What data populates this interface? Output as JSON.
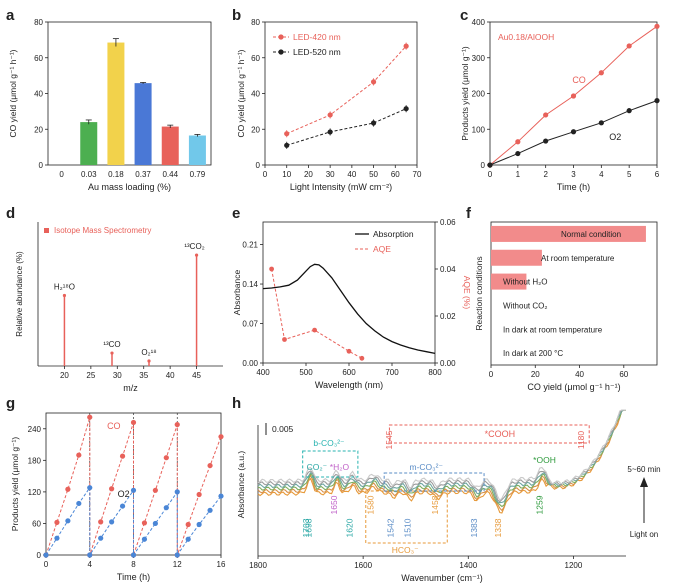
{
  "chart_data": [
    {
      "panel": "a",
      "type": "bar",
      "xlabel": "Au mass loading (%)",
      "ylabel": "CO yield (μmol g⁻¹ h⁻¹)",
      "categories": [
        "0",
        "0.03",
        "0.18",
        "0.37",
        "0.44",
        "0.79"
      ],
      "values": [
        0,
        24,
        68.5,
        45.8,
        21.5,
        16.5
      ],
      "errors": [
        0,
        1.2,
        2.2,
        0.4,
        0.8,
        0.6
      ],
      "colors": [
        "#888888",
        "#4caf50",
        "#f2d24b",
        "#4a78d6",
        "#e8615a",
        "#71c8ea"
      ],
      "ylim": [
        0,
        80
      ],
      "yticks": [
        0,
        20,
        40,
        60,
        80
      ]
    },
    {
      "panel": "b",
      "type": "line",
      "xlabel": "Light Intensity (mW cm⁻²)",
      "ylabel": "CO yield (μmol g⁻¹ h⁻¹)",
      "xlim": [
        0,
        70
      ],
      "xticks": [
        0,
        10,
        20,
        30,
        40,
        50,
        60,
        70
      ],
      "ylim": [
        0,
        80
      ],
      "yticks": [
        0,
        20,
        40,
        60,
        80
      ],
      "series": [
        {
          "name": "LED-420 nm",
          "color": "#e8615a",
          "x": [
            10,
            30,
            50,
            65
          ],
          "values": [
            17.5,
            28,
            46.5,
            66.5
          ]
        },
        {
          "name": "LED-520 nm",
          "color": "#222222",
          "x": [
            10,
            30,
            50,
            65
          ],
          "values": [
            11,
            18.5,
            23.5,
            31.5
          ]
        }
      ]
    },
    {
      "panel": "c",
      "type": "line",
      "xlabel": "Time (h)",
      "ylabel": "Products yield (μmol g⁻¹)",
      "annotation": "Au0.18/AlOOH",
      "xlim": [
        0,
        6
      ],
      "xticks": [
        0,
        1,
        2,
        3,
        4,
        5,
        6
      ],
      "ylim": [
        0,
        400
      ],
      "yticks": [
        0,
        100,
        200,
        300,
        400
      ],
      "series": [
        {
          "name": "CO",
          "color": "#e8615a",
          "x": [
            0,
            1,
            2,
            3,
            4,
            5,
            6
          ],
          "values": [
            0,
            65,
            140,
            193,
            258,
            333,
            388
          ]
        },
        {
          "name": "O2",
          "color": "#222222",
          "x": [
            0,
            1,
            2,
            3,
            4,
            5,
            6
          ],
          "values": [
            0,
            32,
            67,
            93,
            118,
            152,
            180
          ]
        }
      ]
    },
    {
      "panel": "d",
      "type": "bar",
      "xlabel": "m/z",
      "ylabel": "Relative abundance (%)",
      "legend": "Isotope Mass Spectrometry",
      "xlim": [
        15,
        50
      ],
      "xticks": [
        20,
        25,
        30,
        35,
        40,
        45
      ],
      "peaks": [
        {
          "mz": 20,
          "value": 0.49,
          "label": "H₂¹⁸O"
        },
        {
          "mz": 29,
          "value": 0.09,
          "label": "¹³CO"
        },
        {
          "mz": 36,
          "value": 0.035,
          "label": "O₂¹⁸"
        },
        {
          "mz": 45,
          "value": 0.77,
          "label": "¹³CO₂"
        }
      ]
    },
    {
      "panel": "e",
      "type": "line",
      "xlabel": "Wavelength (nm)",
      "ylabel": "Absorbance",
      "y2label": "AQE (%)",
      "xlim": [
        400,
        800
      ],
      "xticks": [
        400,
        500,
        600,
        700,
        800
      ],
      "ylim": [
        0,
        0.25
      ],
      "yticks": [
        0.0,
        0.07,
        0.14,
        0.21
      ],
      "y2lim": [
        0,
        0.06
      ],
      "y2ticks": [
        0.0,
        0.02,
        0.04,
        0.06
      ],
      "series": [
        {
          "name": "Absorption",
          "color": "#111111",
          "x": [
            400,
            420,
            440,
            460,
            480,
            500,
            510,
            520,
            530,
            540,
            560,
            580,
            600,
            620,
            640,
            660,
            680,
            700,
            720,
            740,
            760,
            780,
            800
          ],
          "values": [
            0.132,
            0.133,
            0.135,
            0.138,
            0.147,
            0.163,
            0.171,
            0.175,
            0.174,
            0.168,
            0.151,
            0.129,
            0.107,
            0.087,
            0.07,
            0.057,
            0.046,
            0.038,
            0.032,
            0.027,
            0.023,
            0.02,
            0.017
          ]
        },
        {
          "name": "AQE",
          "color": "#e8615a",
          "axis": "right",
          "x": [
            420,
            450,
            520,
            600,
            630
          ],
          "values": [
            0.04,
            0.01,
            0.014,
            0.005,
            0.002
          ]
        }
      ]
    },
    {
      "panel": "f",
      "type": "bar",
      "orientation": "horizontal",
      "xlabel": "CO yield (μmol g⁻¹ h⁻¹)",
      "ylabel": "Reaction conditions",
      "xlim": [
        0,
        75
      ],
      "xticks": [
        0,
        20,
        40,
        60
      ],
      "categories": [
        "Normal condition",
        "At room temperature",
        "Without H₂O",
        "Without CO₂",
        "In dark at room temperature",
        "In dark at 200 °C"
      ],
      "values": [
        70,
        23,
        16,
        0,
        0,
        0
      ],
      "color": "#f28b8b"
    },
    {
      "panel": "g",
      "type": "line",
      "xlabel": "Time (h)",
      "ylabel": "Products yield (μmol g⁻¹)",
      "xlim": [
        0,
        16
      ],
      "xticks": [
        0,
        4,
        8,
        12,
        16
      ],
      "ylim": [
        0,
        270
      ],
      "yticks": [
        0,
        60,
        120,
        180,
        240
      ],
      "cycles": 4,
      "series": [
        {
          "name": "CO",
          "color": "#e8615a",
          "x": [
            0,
            1,
            2,
            3,
            4,
            4,
            5,
            6,
            7,
            8,
            8,
            9,
            10,
            11,
            12,
            12,
            13,
            14,
            15,
            16
          ],
          "values": [
            0,
            62,
            125,
            190,
            262,
            0,
            63,
            126,
            188,
            252,
            0,
            61,
            123,
            185,
            248,
            0,
            58,
            115,
            170,
            225
          ]
        },
        {
          "name": "O2",
          "color": "#4a86d6",
          "x": [
            0,
            1,
            2,
            3,
            4,
            4,
            5,
            6,
            7,
            8,
            8,
            9,
            10,
            11,
            12,
            12,
            13,
            14,
            15,
            16
          ],
          "values": [
            0,
            32,
            65,
            98,
            128,
            0,
            32,
            63,
            93,
            123,
            0,
            30,
            60,
            90,
            120,
            0,
            30,
            58,
            85,
            112
          ]
        }
      ]
    },
    {
      "panel": "h",
      "type": "line",
      "xlabel": "Wavenumber (cm⁻¹)",
      "ylabel": "Absorbance (a.u.)",
      "scale_label": "0.005",
      "xlim": [
        1800,
        1100
      ],
      "xticks": [
        1800,
        1600,
        1400,
        1200
      ],
      "time_label": "5~60 min",
      "light_label": "Light on",
      "groups": [
        {
          "label": "b-CO₃²⁻",
          "peaks": [
            1703,
            1698
          ],
          "color": "#27b3b0"
        },
        {
          "label": "CO₂⁻",
          "peaks": [
            1703,
            1698
          ],
          "color": "#2aa7a5"
        },
        {
          "label": "*H₂O",
          "peaks": [
            1650
          ],
          "color": "#c061c8"
        },
        {
          "label": "",
          "peaks": [
            1620
          ],
          "color": "#2aa7a5"
        },
        {
          "label": "HCO₃⁻",
          "peaks": [
            1580,
            1458,
            1338
          ],
          "color": "#e79a3a"
        },
        {
          "label": "m-CO₃²⁻",
          "peaks": [
            1542,
            1510,
            1383
          ],
          "color": "#5a8cc6"
        },
        {
          "label": "*COOH",
          "peaks": [
            1545,
            1180
          ],
          "color": "#e8615a"
        },
        {
          "label": "*OOH",
          "peaks": [
            1259
          ],
          "color": "#2e9a3c"
        }
      ],
      "peak_labels": [
        {
          "wn": 1703,
          "text": "1703",
          "color": "#2aa7a5"
        },
        {
          "wn": 1698,
          "text": "1698",
          "color": "#2aa7a5"
        },
        {
          "wn": 1650,
          "text": "1650",
          "color": "#c061c8"
        },
        {
          "wn": 1620,
          "text": "1620",
          "color": "#2aa7a5"
        },
        {
          "wn": 1580,
          "text": "1580",
          "color": "#e79a3a"
        },
        {
          "wn": 1545,
          "text": "1545",
          "color": "#e8615a"
        },
        {
          "wn": 1542,
          "text": "1542",
          "color": "#5a8cc6"
        },
        {
          "wn": 1510,
          "text": "1510",
          "color": "#5a8cc6"
        },
        {
          "wn": 1458,
          "text": "1458",
          "color": "#e79a3a"
        },
        {
          "wn": 1383,
          "text": "1383",
          "color": "#5a8cc6"
        },
        {
          "wn": 1338,
          "text": "1338",
          "color": "#e79a3a"
        },
        {
          "wn": 1259,
          "text": "1259",
          "color": "#2e9a3c"
        },
        {
          "wn": 1180,
          "text": "1180",
          "color": "#e8615a"
        }
      ],
      "spectra_count": 6,
      "spectra_colors": [
        "#e79a3a",
        "#d8904a",
        "#7fae5c",
        "#6da5a0",
        "#9a9a9a",
        "#c9c9c9"
      ]
    }
  ],
  "panel_letters": [
    "a",
    "b",
    "c",
    "d",
    "e",
    "f",
    "g",
    "h"
  ]
}
